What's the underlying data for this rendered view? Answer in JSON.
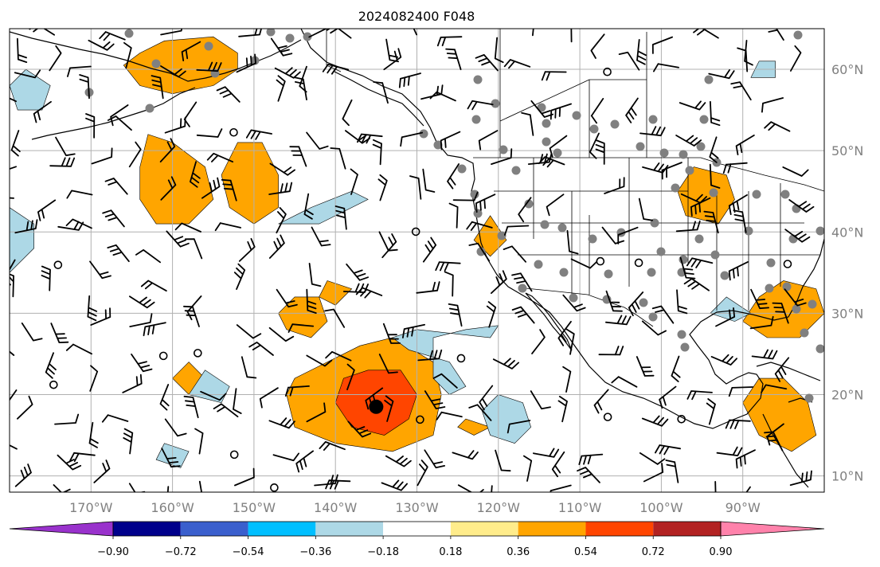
{
  "title": "2024082400 F048",
  "map": {
    "lon_range": [
      -180,
      -80
    ],
    "lat_range": [
      8,
      65
    ],
    "lon_ticks": [
      {
        "value": -170,
        "label": "170°W"
      },
      {
        "value": -160,
        "label": "160°W"
      },
      {
        "value": -150,
        "label": "150°W"
      },
      {
        "value": -140,
        "label": "140°W"
      },
      {
        "value": -130,
        "label": "130°W"
      },
      {
        "value": -120,
        "label": "120°W"
      },
      {
        "value": -110,
        "label": "110°W"
      },
      {
        "value": -100,
        "label": "100°W"
      },
      {
        "value": -90,
        "label": "90°W"
      }
    ],
    "lat_ticks": [
      {
        "value": 60,
        "label": "60°N"
      },
      {
        "value": 50,
        "label": "50°N"
      },
      {
        "value": 40,
        "label": "40°N"
      },
      {
        "value": 30,
        "label": "30°N"
      },
      {
        "value": 20,
        "label": "20°N"
      },
      {
        "value": 10,
        "label": "10°N"
      }
    ],
    "grid": true,
    "storm_center": {
      "lon": -135,
      "lat": 18.5
    },
    "anomaly_regions": [
      {
        "level": 0.36,
        "pts": [
          [
            -164,
            62
          ],
          [
            -166,
            60.5
          ],
          [
            -164,
            58
          ],
          [
            -160,
            57
          ],
          [
            -155,
            58
          ],
          [
            -152,
            60
          ],
          [
            -152,
            62
          ],
          [
            -155,
            64
          ],
          [
            -161,
            63.5
          ]
        ]
      },
      {
        "level": 0.36,
        "pts": [
          [
            -163,
            52
          ],
          [
            -164,
            48
          ],
          [
            -164,
            44
          ],
          [
            -162,
            41
          ],
          [
            -158,
            41
          ],
          [
            -155,
            44
          ],
          [
            -156,
            48
          ],
          [
            -160,
            51
          ]
        ]
      },
      {
        "level": 0.36,
        "pts": [
          [
            -152,
            51
          ],
          [
            -154,
            47
          ],
          [
            -153,
            43
          ],
          [
            -150,
            41
          ],
          [
            -147,
            43
          ],
          [
            -147,
            47
          ],
          [
            -149,
            51
          ]
        ]
      },
      {
        "level": 0.36,
        "pts": [
          [
            -141,
            24
          ],
          [
            -145,
            22
          ],
          [
            -146,
            20
          ],
          [
            -145,
            16
          ],
          [
            -140,
            14
          ],
          [
            -133,
            13
          ],
          [
            -128,
            15
          ],
          [
            -127,
            20
          ],
          [
            -128,
            24
          ],
          [
            -133,
            27
          ],
          [
            -137,
            26
          ]
        ]
      },
      {
        "level": 0.54,
        "pts": [
          [
            -139,
            22
          ],
          [
            -140,
            19
          ],
          [
            -138,
            16
          ],
          [
            -134,
            15
          ],
          [
            -131,
            17
          ],
          [
            -130,
            20
          ],
          [
            -132,
            23
          ],
          [
            -136,
            23
          ]
        ]
      },
      {
        "level": 0.36,
        "pts": [
          [
            -145,
            32
          ],
          [
            -147,
            30
          ],
          [
            -146,
            28
          ],
          [
            -143,
            27
          ],
          [
            -141,
            29
          ],
          [
            -142,
            32
          ]
        ]
      },
      {
        "level": 0.36,
        "pts": [
          [
            -141,
            34
          ],
          [
            -142,
            32
          ],
          [
            -140,
            31
          ],
          [
            -138,
            33
          ]
        ]
      },
      {
        "level": 0.36,
        "pts": [
          [
            -96,
            48
          ],
          [
            -98,
            45
          ],
          [
            -97,
            42
          ],
          [
            -93,
            41
          ],
          [
            -91,
            44
          ],
          [
            -92,
            47
          ]
        ]
      },
      {
        "level": 0.36,
        "pts": [
          [
            -88,
            32
          ],
          [
            -90,
            29
          ],
          [
            -87,
            27
          ],
          [
            -83,
            27
          ],
          [
            -80,
            30
          ],
          [
            -81,
            33
          ],
          [
            -85,
            34
          ]
        ]
      },
      {
        "level": 0.36,
        "pts": [
          [
            -88,
            22
          ],
          [
            -90,
            19
          ],
          [
            -88,
            15
          ],
          [
            -84,
            13
          ],
          [
            -81,
            15
          ],
          [
            -82,
            19
          ],
          [
            -85,
            22
          ]
        ]
      },
      {
        "level": 0.36,
        "pts": [
          [
            -121,
            42
          ],
          [
            -123,
            39
          ],
          [
            -121,
            37
          ],
          [
            -119,
            39
          ]
        ]
      },
      {
        "level": 0.36,
        "pts": [
          [
            -158,
            24
          ],
          [
            -160,
            22
          ],
          [
            -158,
            20
          ],
          [
            -156,
            22
          ]
        ]
      },
      {
        "level": 0.36,
        "pts": [
          [
            -124,
            17
          ],
          [
            -125,
            16
          ],
          [
            -123,
            15
          ],
          [
            -121,
            16
          ]
        ]
      },
      {
        "level": -0.36,
        "pts": [
          [
            -130,
            28
          ],
          [
            -133,
            27
          ],
          [
            -131,
            25.5
          ],
          [
            -126,
            24
          ],
          [
            -124,
            21
          ],
          [
            -126,
            20
          ],
          [
            -128,
            22
          ],
          [
            -128,
            27
          ],
          [
            -124,
            28
          ],
          [
            -120,
            28.5
          ],
          [
            -121,
            27
          ]
        ]
      },
      {
        "level": -0.36,
        "pts": [
          [
            -120,
            20
          ],
          [
            -122,
            18
          ],
          [
            -121,
            15
          ],
          [
            -118,
            14
          ],
          [
            -116,
            16
          ],
          [
            -117,
            19
          ]
        ]
      },
      {
        "level": -0.36,
        "pts": [
          [
            -178,
            60
          ],
          [
            -180,
            58
          ],
          [
            -179,
            55
          ],
          [
            -176,
            55
          ],
          [
            -175,
            58
          ]
        ]
      },
      {
        "level": -0.36,
        "pts": [
          [
            -180,
            43
          ],
          [
            -180,
            35
          ],
          [
            -177,
            38
          ],
          [
            -177,
            41
          ]
        ]
      },
      {
        "level": -0.36,
        "pts": [
          [
            -143,
            43
          ],
          [
            -147,
            41
          ],
          [
            -142,
            41
          ],
          [
            -136,
            44
          ],
          [
            -138,
            45
          ]
        ]
      },
      {
        "level": -0.36,
        "pts": [
          [
            -92,
            32
          ],
          [
            -94,
            30
          ],
          [
            -91,
            29
          ],
          [
            -89,
            30
          ]
        ]
      },
      {
        "level": -0.36,
        "pts": [
          [
            -88,
            61
          ],
          [
            -89,
            59
          ],
          [
            -86,
            59
          ],
          [
            -86,
            61
          ]
        ]
      },
      {
        "level": -0.36,
        "pts": [
          [
            -156,
            23
          ],
          [
            -158,
            20
          ],
          [
            -154,
            19
          ],
          [
            -153,
            21
          ]
        ]
      },
      {
        "level": -0.36,
        "pts": [
          [
            -161,
            14
          ],
          [
            -162,
            12
          ],
          [
            -159,
            11
          ],
          [
            -158,
            13
          ]
        ]
      }
    ]
  },
  "colorbar": {
    "colors": [
      "#9932CC",
      "#00008B",
      "#3A5FCD",
      "#00BFFF",
      "#ADD8E6",
      "#FFFFFF",
      "#FFEC8B",
      "#FFA500",
      "#FF4500",
      "#B22222",
      "#FF82AB"
    ],
    "labels": [
      "−0.90",
      "−0.72",
      "−0.54",
      "−0.36",
      "−0.18",
      "0.18",
      "0.36",
      "0.54",
      "0.72",
      "0.90"
    ]
  }
}
